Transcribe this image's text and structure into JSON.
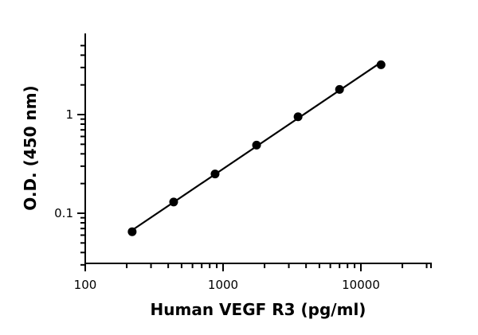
{
  "chart_data": {
    "type": "scatter",
    "xlabel": "Human VEGF R3 (pg/ml)",
    "ylabel": "O.D. (450 nm)",
    "x_scale": "log",
    "y_scale": "log",
    "xlim": [
      100,
      30000
    ],
    "ylim": [
      0.03,
      5
    ],
    "x_ticks": [
      100,
      1000,
      10000
    ],
    "x_tick_labels": [
      "100",
      "1000",
      "10000"
    ],
    "y_ticks": [
      0.1,
      1
    ],
    "y_tick_labels": [
      "0.1",
      "1"
    ],
    "grid": false,
    "fit_line": true,
    "series": [
      {
        "x": [
          219,
          438,
          875,
          1750,
          3500,
          7000,
          14000
        ],
        "y": [
          0.065,
          0.13,
          0.25,
          0.49,
          0.95,
          1.8,
          3.2
        ]
      }
    ]
  }
}
